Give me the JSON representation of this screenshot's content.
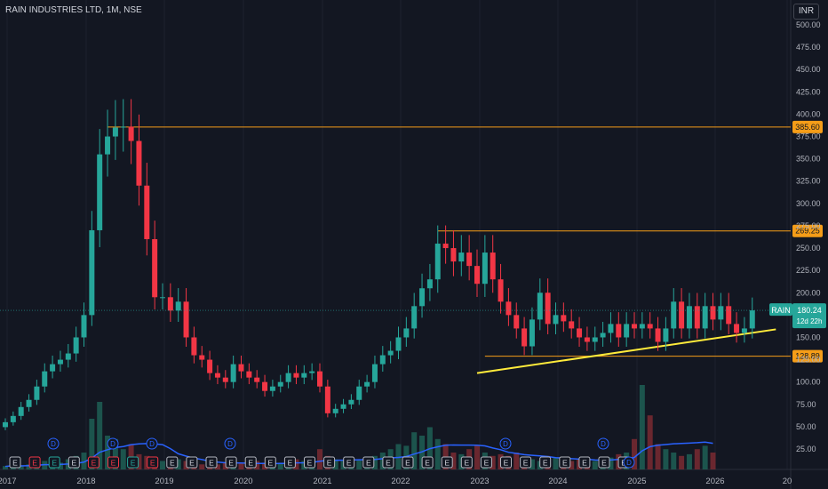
{
  "header": {
    "title": "RAIN INDUSTRIES LTD, 1M, NSE",
    "currency": "INR"
  },
  "colors": {
    "up": "#26a69a",
    "down": "#f23645",
    "level": "#f59d18",
    "trend": "#ffeb3b",
    "avg_line": "#2962ff"
  },
  "ticker": {
    "symbol": "RAIN",
    "last": "180.24",
    "countdown": "12d 22h"
  },
  "chart_data": {
    "type": "candlestick",
    "title": "RAIN INDUSTRIES LTD, 1M, NSE",
    "y_ticks": [
      "500.00",
      "475.00",
      "450.00",
      "425.00",
      "400.00",
      "375.00",
      "350.00",
      "325.00",
      "300.00",
      "275.00",
      "250.00",
      "225.00",
      "200.00",
      "175.00",
      "150.00",
      "125.00",
      "100.00",
      "75.00",
      "50.00",
      "25.00"
    ],
    "x_ticks": [
      "2017",
      "2018",
      "2019",
      "2020",
      "2021",
      "2022",
      "2023",
      "2024",
      "2025",
      "2026",
      "20"
    ],
    "horizontal_levels": [
      {
        "value": 385.6,
        "label": "385.60"
      },
      {
        "value": 269.25,
        "label": "269.25"
      },
      {
        "value": 128.89,
        "label": "128.89"
      }
    ],
    "trendline": {
      "start": [
        "2021-12",
        110
      ],
      "end": [
        "2025-02",
        159
      ]
    },
    "last_price": 180.24,
    "ohlc_path": [
      [
        "2016-12",
        55
      ],
      [
        "2017-01",
        62
      ],
      [
        "2017-02",
        72
      ],
      [
        "2017-03",
        80
      ],
      [
        "2017-04",
        95
      ],
      [
        "2017-05",
        112
      ],
      [
        "2017-06",
        120
      ],
      [
        "2017-07",
        125
      ],
      [
        "2017-08",
        132
      ],
      [
        "2017-09",
        150
      ],
      [
        "2017-10",
        175
      ],
      [
        "2017-11",
        270
      ],
      [
        "2017-12",
        355
      ],
      [
        "2018-01",
        375
      ],
      [
        "2018-02",
        385
      ],
      [
        "2018-03",
        386
      ],
      [
        "2018-04",
        370
      ],
      [
        "2018-05",
        320
      ],
      [
        "2018-06",
        260
      ],
      [
        "2018-07",
        195
      ],
      [
        "2018-08",
        195
      ],
      [
        "2018-09",
        180
      ],
      [
        "2018-10",
        190
      ],
      [
        "2018-11",
        150
      ],
      [
        "2018-12",
        130
      ],
      [
        "2019-01",
        125
      ],
      [
        "2019-02",
        110
      ],
      [
        "2019-03",
        105
      ],
      [
        "2019-04",
        100
      ],
      [
        "2019-05",
        120
      ],
      [
        "2019-06",
        112
      ],
      [
        "2019-07",
        105
      ],
      [
        "2019-08",
        100
      ],
      [
        "2019-09",
        90
      ],
      [
        "2019-10",
        95
      ],
      [
        "2019-11",
        100
      ],
      [
        "2019-12",
        110
      ],
      [
        "2020-01",
        105
      ],
      [
        "2020-02",
        110
      ],
      [
        "2020-03",
        112
      ],
      [
        "2020-04",
        95
      ],
      [
        "2020-05",
        65
      ],
      [
        "2020-06",
        70
      ],
      [
        "2020-07",
        75
      ],
      [
        "2020-08",
        80
      ],
      [
        "2020-09",
        95
      ],
      [
        "2020-10",
        100
      ],
      [
        "2020-11",
        120
      ],
      [
        "2020-12",
        130
      ],
      [
        "2021-01",
        135
      ],
      [
        "2021-02",
        150
      ],
      [
        "2021-03",
        160
      ],
      [
        "2021-04",
        185
      ],
      [
        "2021-05",
        205
      ],
      [
        "2021-06",
        215
      ],
      [
        "2021-07",
        255
      ],
      [
        "2021-08",
        250
      ],
      [
        "2021-09",
        235
      ],
      [
        "2021-10",
        245
      ],
      [
        "2021-11",
        230
      ],
      [
        "2021-12",
        210
      ],
      [
        "2022-01",
        245
      ],
      [
        "2022-02",
        215
      ],
      [
        "2022-03",
        190
      ],
      [
        "2022-04",
        175
      ],
      [
        "2022-05",
        160
      ],
      [
        "2022-06",
        140
      ],
      [
        "2022-07",
        170
      ],
      [
        "2022-08",
        200
      ],
      [
        "2022-09",
        165
      ],
      [
        "2022-10",
        175
      ],
      [
        "2022-11",
        168
      ],
      [
        "2022-12",
        160
      ],
      [
        "2023-01",
        150
      ],
      [
        "2023-02",
        145
      ],
      [
        "2023-03",
        150
      ],
      [
        "2023-04",
        155
      ],
      [
        "2023-05",
        165
      ],
      [
        "2023-06",
        150
      ],
      [
        "2023-07",
        165
      ],
      [
        "2023-08",
        160
      ],
      [
        "2023-09",
        165
      ],
      [
        "2023-10",
        160
      ],
      [
        "2023-11",
        145
      ],
      [
        "2023-12",
        160
      ],
      [
        "2024-01",
        190
      ],
      [
        "2024-02",
        160
      ],
      [
        "2024-03",
        185
      ],
      [
        "2024-04",
        160
      ],
      [
        "2024-05",
        185
      ],
      [
        "2024-06",
        170
      ],
      [
        "2024-07",
        185
      ],
      [
        "2024-08",
        165
      ],
      [
        "2024-09",
        155
      ],
      [
        "2024-10",
        160
      ],
      [
        "2024-11",
        180.24
      ]
    ],
    "volume_bars": [
      2,
      3,
      2,
      3,
      4,
      5,
      3,
      4,
      6,
      8,
      10,
      30,
      40,
      20,
      18,
      12,
      15,
      9,
      8,
      6,
      5,
      4,
      6,
      5,
      4,
      3,
      4,
      3,
      4,
      5,
      4,
      3,
      5,
      4,
      3,
      4,
      5,
      6,
      5,
      7,
      12,
      8,
      6,
      5,
      4,
      6,
      5,
      8,
      10,
      12,
      15,
      14,
      22,
      20,
      25,
      18,
      15,
      10,
      9,
      12,
      14,
      10,
      8,
      9,
      8,
      10,
      7,
      6,
      5,
      8,
      7,
      6,
      5,
      6,
      7,
      5,
      6,
      7,
      9,
      10,
      18,
      50,
      32,
      15,
      12,
      10,
      8,
      9,
      12,
      14,
      10
    ],
    "events": [
      "E",
      "E",
      "E",
      "E",
      "E",
      "E",
      "E",
      "E",
      "E",
      "E",
      "E",
      "E",
      "E",
      "E",
      "E",
      "E",
      "E",
      "E",
      "E",
      "E",
      "E",
      "E",
      "E",
      "E",
      "E",
      "E",
      "E",
      "E",
      "E",
      "E",
      "E",
      "E"
    ],
    "dividends": [
      "D",
      "D",
      "D",
      "D",
      "D",
      "D",
      "D"
    ]
  }
}
